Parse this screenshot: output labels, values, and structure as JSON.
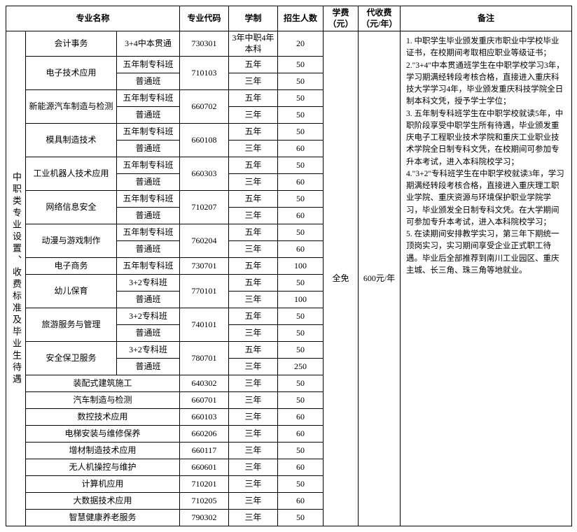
{
  "header": {
    "side": "中职类专业设置、收费标准及毕业生待遇",
    "major": "专业名称",
    "code": "专业代码",
    "years": "学制",
    "enroll": "招生人数",
    "tuition": "学费（元）",
    "other": "代收费（元/年）",
    "remarks": "备注",
    "tuition_val": "全免",
    "other_val": "600元/年"
  },
  "r": {
    "r1m": "会计事务",
    "r1c": "3+4中本贯通",
    "r1code": "730301",
    "r1y": "3年中职4年本科",
    "r1n": "20",
    "r2m": "电子技术应用",
    "r2c": "五年制专科班",
    "r2code": "710103",
    "r2y": "五年",
    "r2n": "50",
    "r3c": "普通班",
    "r3y": "三年",
    "r3n": "50",
    "r4m": "新能源汽车制造与检测",
    "r4c": "五年制专科班",
    "r4code": "660702",
    "r4y": "五年",
    "r4n": "50",
    "r5c": "普通班",
    "r5y": "三年",
    "r5n": "50",
    "r6m": "模具制造技术",
    "r6c": "五年制专科班",
    "r6code": "660108",
    "r6y": "五年",
    "r6n": "50",
    "r7c": "普通班",
    "r7y": "三年",
    "r7n": "60",
    "r8m": "工业机器人技术应用",
    "r8c": "五年制专科班",
    "r8code": "660303",
    "r8y": "五年",
    "r8n": "50",
    "r9c": "普通班",
    "r9y": "三年",
    "r9n": "60",
    "r10m": "网络信息安全",
    "r10c": "五年制专科班",
    "r10code": "710207",
    "r10y": "五年",
    "r10n": "50",
    "r11c": "普通班",
    "r11y": "三年",
    "r11n": "60",
    "r12m": "动漫与游戏制作",
    "r12c": "五年制专科班",
    "r12code": "760204",
    "r12y": "五年",
    "r12n": "50",
    "r13c": "普通班",
    "r13y": "三年",
    "r13n": "60",
    "r14m": "电子商务",
    "r14c": "五年制专科班",
    "r14code": "730701",
    "r14y": "五年",
    "r14n": "100",
    "r15m": "幼儿保育",
    "r15c": "3+2专科班",
    "r15code": "770101",
    "r15y": "五年",
    "r15n": "50",
    "r16c": "普通班",
    "r16y": "三年",
    "r16n": "100",
    "r17m": "旅游服务与管理",
    "r17c": "3+2专科班",
    "r17code": "740101",
    "r17y": "五年",
    "r17n": "50",
    "r18c": "普通班",
    "r18y": "三年",
    "r18n": "50",
    "r19m": "安全保卫服务",
    "r19c": "3+2专科班",
    "r19code": "780701",
    "r19y": "五年",
    "r19n": "50",
    "r20c": "普通班",
    "r20y": "三年",
    "r20n": "250",
    "r21m": "装配式建筑施工",
    "r21code": "640302",
    "r21y": "三年",
    "r21n": "50",
    "r22m": "汽车制造与检测",
    "r22code": "660701",
    "r22y": "三年",
    "r22n": "50",
    "r23m": "数控技术应用",
    "r23code": "660103",
    "r23y": "三年",
    "r23n": "60",
    "r24m": "电梯安装与维修保养",
    "r24code": "660206",
    "r24y": "三年",
    "r24n": "60",
    "r25m": "增材制造技术应用",
    "r25code": "660117",
    "r25y": "三年",
    "r25n": "50",
    "r26m": "无人机操控与维护",
    "r26code": "660601",
    "r26y": "三年",
    "r26n": "60",
    "r27m": "计算机应用",
    "r27code": "710201",
    "r27y": "三年",
    "r27n": "50",
    "r28m": "大数据技术应用",
    "r28code": "710205",
    "r28y": "三年",
    "r28n": "60",
    "r29m": "智慧健康养老服务",
    "r29code": "790302",
    "r29y": "三年",
    "r29n": "50"
  },
  "notes": "1. 中职学生毕业颁发重庆市职业中学校毕业证书，在校期间考取相应职业等级证书；\n2.\"3+4\"中本贯通班学生在中职学校学习3年，学习期满经转段考核合格，直接进入重庆科技大学学习4年，毕业颁发重庆科技学院全日制本科文凭，授予学士学位；\n3. 五年制专科班学生在中职学校就读5年，中职阶段享受中职学生所有待遇，毕业颁发重庆电子工程职业技术学院和重庆工业职业技术学院全日制专科文凭，在校期间可参加专升本考试，进入本科院校学习；\n4.\"3+2\"专科班学生在中职学校就读3年，学习期满经转段考核合格，直接进入重庆理工职业学院、重庆资源与环境保护职业学院学习，毕业颁发全日制专科文凭。在大学期间可参加专升本考试，进入本科院校学习；\n5. 在读期间安排教学实习，第三年下期统一顶岗实习，实习期间享受企业正式职工待遇。毕业后全部推荐到南川工业园区、重庆主城、长三角、珠三角等地就业。"
}
